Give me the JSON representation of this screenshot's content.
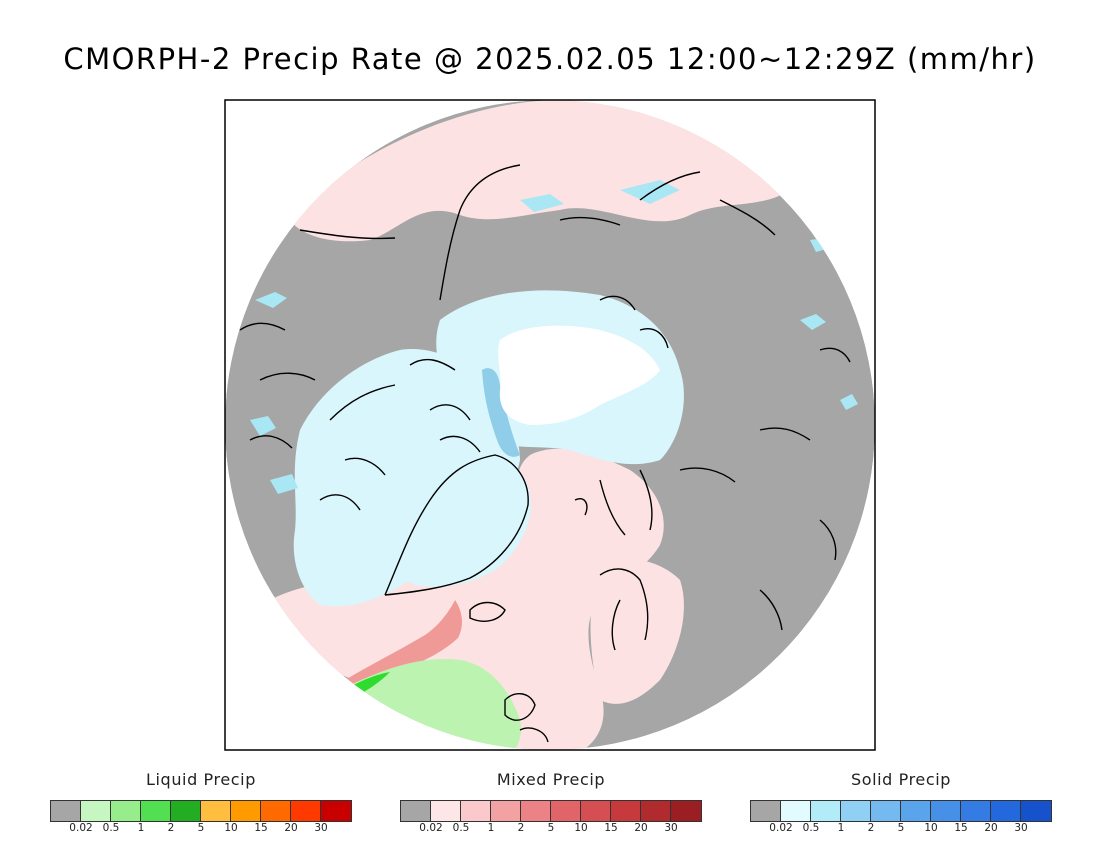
{
  "title": "CMORPH-2 Precip Rate @ 2025.02.05 12:00~12:29Z (mm/hr)",
  "map": {
    "projection": "north-polar-stereographic",
    "colors": {
      "no_precip": "#a6a6a6",
      "mixed_light": "#fde2e4",
      "solid_light": "#d8f6fb",
      "solid_medium": "#a9e7f4",
      "solid_blue": "#8fcde8",
      "sea_ice_white": "#ffffff",
      "liquid_light": "#bdf3b1",
      "liquid_medium": "#8fe486",
      "liquid_bright": "#2fdb2f",
      "mixed_band": "#f09a98",
      "coastline": "#000000"
    }
  },
  "legends": [
    {
      "title": "Liquid Precip",
      "colors": [
        "#a6a6a6",
        "#c7f7c0",
        "#97ec8c",
        "#52e052",
        "#22ad22",
        "#ffbe40",
        "#ff9a00",
        "#ff6a00",
        "#ff3a00",
        "#c80000"
      ],
      "ticks": [
        "0.02",
        "0.5",
        "1",
        "2",
        "5",
        "10",
        "15",
        "20",
        "30"
      ]
    },
    {
      "title": "Mixed Precip",
      "colors": [
        "#a6a6a6",
        "#fde6e8",
        "#fbc8cc",
        "#f3a2a4",
        "#ec8285",
        "#e06468",
        "#d44e52",
        "#c63a3e",
        "#b02a2e",
        "#9a1e22"
      ],
      "ticks": [
        "0.02",
        "0.5",
        "1",
        "2",
        "5",
        "10",
        "15",
        "20",
        "30"
      ]
    },
    {
      "title": "Solid Precip",
      "colors": [
        "#a6a6a6",
        "#e2fbfe",
        "#b2ecf8",
        "#90d0f4",
        "#74baf0",
        "#5aa4ec",
        "#4690e8",
        "#347ce4",
        "#2468de",
        "#1652cc"
      ],
      "ticks": [
        "0.02",
        "0.5",
        "1",
        "2",
        "5",
        "10",
        "15",
        "20",
        "30"
      ]
    }
  ]
}
